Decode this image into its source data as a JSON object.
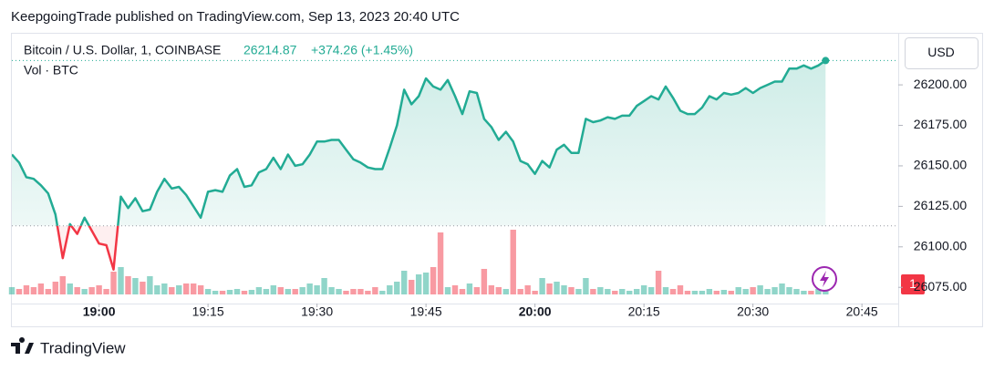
{
  "chart_data": {
    "type": "line",
    "title": "KeepgoingTrade published on TradingView.com, Sep 13, 2023 20:40 UTC",
    "legend": {
      "symbol": "Bitcoin / U.S. Dollar, 1, COINBASE",
      "price": 26214.87,
      "change": "+374.26 (+1.45%)"
    },
    "currency": "USD",
    "badge": "1",
    "brand": "TradingView",
    "baseline": 26113,
    "x": [
      "18:48",
      "18:49",
      "18:50",
      "18:51",
      "18:52",
      "18:53",
      "18:54",
      "18:55",
      "18:56",
      "18:57",
      "18:58",
      "18:59",
      "19:00",
      "19:01",
      "19:02",
      "19:03",
      "19:04",
      "19:05",
      "19:06",
      "19:07",
      "19:08",
      "19:09",
      "19:10",
      "19:11",
      "19:12",
      "19:13",
      "19:14",
      "19:15",
      "19:16",
      "19:17",
      "19:18",
      "19:19",
      "19:20",
      "19:21",
      "19:22",
      "19:23",
      "19:24",
      "19:25",
      "19:26",
      "19:27",
      "19:28",
      "19:29",
      "19:30",
      "19:31",
      "19:32",
      "19:33",
      "19:34",
      "19:35",
      "19:36",
      "19:37",
      "19:38",
      "19:39",
      "19:40",
      "19:41",
      "19:42",
      "19:43",
      "19:44",
      "19:45",
      "19:46",
      "19:47",
      "19:48",
      "19:49",
      "19:50",
      "19:51",
      "19:52",
      "19:53",
      "19:54",
      "19:55",
      "19:56",
      "19:57",
      "19:58",
      "19:59",
      "20:00",
      "20:01",
      "20:02",
      "20:03",
      "20:04",
      "20:05",
      "20:06",
      "20:07",
      "20:08",
      "20:09",
      "20:10",
      "20:11",
      "20:12",
      "20:13",
      "20:14",
      "20:15",
      "20:16",
      "20:17",
      "20:18",
      "20:19",
      "20:20",
      "20:21",
      "20:22",
      "20:23",
      "20:24",
      "20:25",
      "20:26",
      "20:27",
      "20:28",
      "20:29",
      "20:30",
      "20:31",
      "20:32",
      "20:33",
      "20:34",
      "20:35",
      "20:36",
      "20:37",
      "20:38",
      "20:39",
      "20:40"
    ],
    "series": [
      {
        "name": "Bitcoin / U.S. Dollar",
        "color": "#22ab94",
        "down_color": "#f23645",
        "values": [
          26157,
          26152,
          26143,
          26142,
          26138,
          26133,
          26120,
          26093,
          26114,
          26108,
          26118,
          26110,
          26102,
          26101,
          26086,
          26131,
          26124,
          26130,
          26122,
          26123,
          26134,
          26142,
          26136,
          26137,
          26132,
          26125,
          26118,
          26134,
          26135,
          26134,
          26144,
          26148,
          26137,
          26138,
          26146,
          26148,
          26155,
          26148,
          26157,
          26150,
          26151,
          26157,
          26165,
          26165,
          26166,
          26166,
          26160,
          26154,
          26152,
          26149,
          26148,
          26148,
          26161,
          26175,
          26197,
          26188,
          26193,
          26204,
          26199,
          26197,
          26203,
          26193,
          26182,
          26196,
          26195,
          26179,
          26174,
          26166,
          26171,
          26165,
          26153,
          26151,
          26145,
          26153,
          26149,
          26160,
          26163,
          26158,
          26158,
          26179,
          26177,
          26178,
          26180,
          26179,
          26181,
          26181,
          26187,
          26190,
          26193,
          26191,
          26199,
          26192,
          26184,
          26182,
          26182,
          26186,
          26193,
          26191,
          26195,
          26194,
          26195,
          26198,
          26195,
          26198,
          26200,
          26202,
          26202,
          26210,
          26210,
          26212,
          26210,
          26212,
          26215
        ]
      },
      {
        "name": "Vol · BTC",
        "type": "volume",
        "up_color": "rgba(34,171,148,0.5)",
        "down_color": "rgba(242,54,69,0.5)",
        "values": [
          8,
          6,
          10,
          8,
          12,
          6,
          14,
          20,
          12,
          8,
          6,
          8,
          10,
          6,
          25,
          30,
          20,
          18,
          14,
          20,
          10,
          12,
          8,
          10,
          12,
          12,
          10,
          6,
          4,
          4,
          5,
          6,
          4,
          5,
          8,
          6,
          10,
          8,
          6,
          6,
          8,
          12,
          10,
          18,
          8,
          6,
          4,
          6,
          6,
          4,
          8,
          4,
          10,
          14,
          26,
          16,
          22,
          24,
          30,
          68,
          8,
          10,
          6,
          12,
          8,
          28,
          10,
          8,
          6,
          71,
          6,
          10,
          4,
          18,
          12,
          14,
          10,
          8,
          6,
          18,
          6,
          8,
          6,
          4,
          6,
          4,
          6,
          10,
          8,
          26,
          8,
          6,
          10,
          4,
          4,
          4,
          6,
          4,
          5,
          4,
          8,
          6,
          8,
          10,
          6,
          8,
          12,
          8,
          6,
          4,
          4,
          6,
          6
        ]
      }
    ],
    "xlim": [
      "18:48",
      "20:50"
    ],
    "xticks": [
      "19:00",
      "19:15",
      "19:30",
      "19:45",
      "20:00",
      "20:15",
      "20:30",
      "20:45"
    ],
    "ylim": [
      26065,
      26231
    ],
    "yticks": [
      {
        "value": 26075,
        "label": "26075.00"
      },
      {
        "value": 26100,
        "label": "26100.00"
      },
      {
        "value": 26125,
        "label": "26125.00"
      },
      {
        "value": 26150,
        "label": "26150.00"
      },
      {
        "value": 26175,
        "label": "26175.00"
      },
      {
        "value": 26200,
        "label": "26200.00"
      }
    ],
    "volume_ylim": [
      0,
      80
    ]
  }
}
